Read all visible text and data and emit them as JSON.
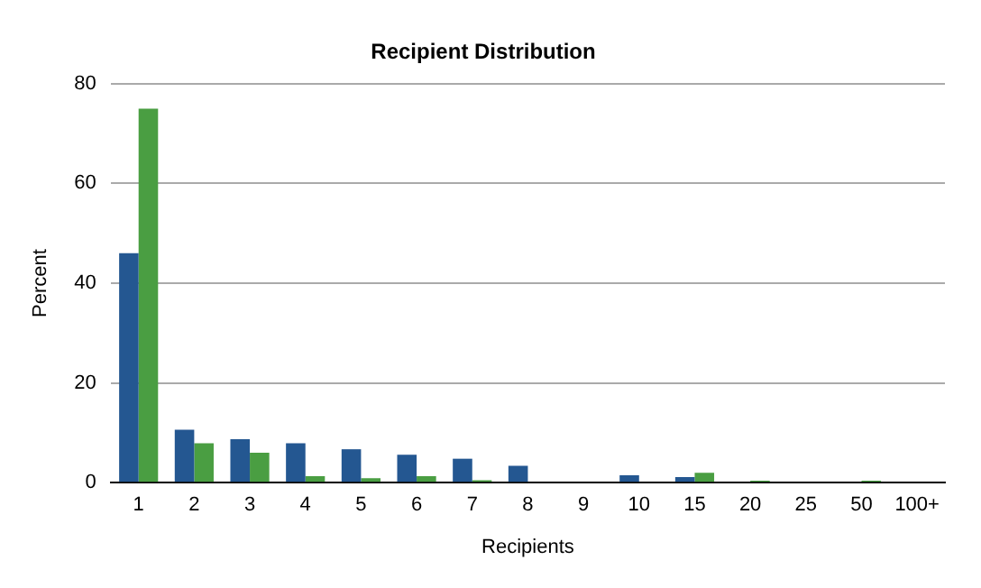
{
  "chart_data": {
    "type": "bar",
    "title": "Recipient Distribution",
    "xlabel": "Recipients",
    "ylabel": "Percent",
    "categories": [
      "1",
      "2",
      "3",
      "4",
      "5",
      "6",
      "7",
      "8",
      "9",
      "10",
      "15",
      "20",
      "25",
      "50",
      "100+"
    ],
    "series": [
      {
        "color": "#245791",
        "values": [
          46,
          10.6,
          8.7,
          7.9,
          6.7,
          5.6,
          4.8,
          3.4,
          0,
          1.5,
          1.1,
          0,
          0,
          0,
          0
        ]
      },
      {
        "color": "#4a9e42",
        "values": [
          75,
          7.9,
          6,
          1.3,
          0.9,
          1.3,
          0.5,
          0,
          0,
          0,
          2,
          0.4,
          0,
          0.4,
          0
        ]
      }
    ],
    "ylim": [
      0,
      80
    ],
    "yticks": [
      0,
      20,
      40,
      60,
      80
    ],
    "grid": "y",
    "legend": false
  }
}
